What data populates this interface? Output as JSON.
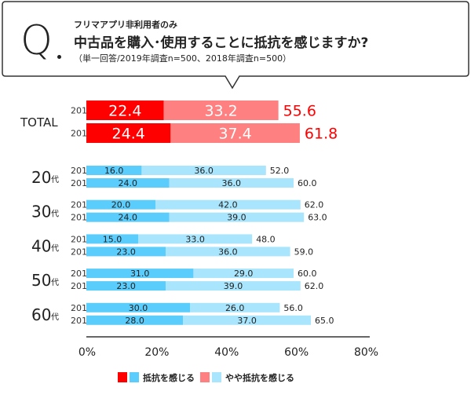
{
  "question": {
    "mark": "Q",
    "subtitle": "フリマアプリ非利用者のみ",
    "title": "中古品を購入･使用することに抵抗を感じますか?",
    "note": "（単一回答/2019年調査n=500、2018年調査n=500）"
  },
  "chart_data": {
    "type": "bar",
    "stacked": true,
    "orientation": "horizontal",
    "title": "中古品を購入･使用することに抵抗を感じますか?",
    "xlim": [
      0,
      80
    ],
    "xticks": [
      "0%",
      "20%",
      "40%",
      "60%",
      "80%"
    ],
    "groups": [
      {
        "label": "TOTAL",
        "suffix": "",
        "total": true,
        "rows": [
          {
            "year": "2019",
            "values": [
              22.4,
              33.2
            ],
            "labels": [
              "22.4",
              "33.2"
            ],
            "sum": "55.6"
          },
          {
            "year": "2018",
            "values": [
              24.4,
              37.4
            ],
            "labels": [
              "24.4",
              "37.4"
            ],
            "sum": "61.8"
          }
        ]
      },
      {
        "label": "20",
        "suffix": "代",
        "total": false,
        "rows": [
          {
            "year": "2019",
            "values": [
              16.0,
              36.0
            ],
            "labels": [
              "16.0",
              "36.0"
            ],
            "sum": "52.0"
          },
          {
            "year": "2018",
            "values": [
              24.0,
              36.0
            ],
            "labels": [
              "24.0",
              "36.0"
            ],
            "sum": "60.0"
          }
        ]
      },
      {
        "label": "30",
        "suffix": "代",
        "total": false,
        "rows": [
          {
            "year": "2019",
            "values": [
              20.0,
              42.0
            ],
            "labels": [
              "20.0",
              "42.0"
            ],
            "sum": "62.0"
          },
          {
            "year": "2018",
            "values": [
              24.0,
              39.0
            ],
            "labels": [
              "24.0",
              "39.0"
            ],
            "sum": "63.0"
          }
        ]
      },
      {
        "label": "40",
        "suffix": "代",
        "total": false,
        "rows": [
          {
            "year": "2019",
            "values": [
              15.0,
              33.0
            ],
            "labels": [
              "15.0",
              "33.0"
            ],
            "sum": "48.0"
          },
          {
            "year": "2018",
            "values": [
              23.0,
              36.0
            ],
            "labels": [
              "23.0",
              "36.0"
            ],
            "sum": "59.0"
          }
        ]
      },
      {
        "label": "50",
        "suffix": "代",
        "total": false,
        "rows": [
          {
            "year": "2019",
            "values": [
              31.0,
              29.0
            ],
            "labels": [
              "31.0",
              "29.0"
            ],
            "sum": "60.0"
          },
          {
            "year": "2018",
            "values": [
              23.0,
              39.0
            ],
            "labels": [
              "23.0",
              "39.0"
            ],
            "sum": "62.0"
          }
        ]
      },
      {
        "label": "60",
        "suffix": "代",
        "total": false,
        "rows": [
          {
            "year": "2019",
            "values": [
              30.0,
              26.0
            ],
            "labels": [
              "30.0",
              "26.0"
            ],
            "sum": "56.0"
          },
          {
            "year": "2018",
            "values": [
              28.0,
              37.0
            ],
            "labels": [
              "28.0",
              "37.0"
            ],
            "sum": "65.0"
          }
        ]
      }
    ],
    "legend": [
      {
        "label": "抵抗を感じる",
        "colors": [
          "#ff0000",
          "#5bcdfc"
        ]
      },
      {
        "label": "やや抵抗を感じる",
        "colors": [
          "#ff8080",
          "#a9e5fc"
        ]
      }
    ],
    "legend_position": "bottom",
    "colors": {
      "total_strong": "#ff0000",
      "total_mild": "#ff8080",
      "age_strong": "#5bcdfc",
      "age_mild": "#a9e5fc",
      "total_sum": "#ff0000"
    }
  }
}
